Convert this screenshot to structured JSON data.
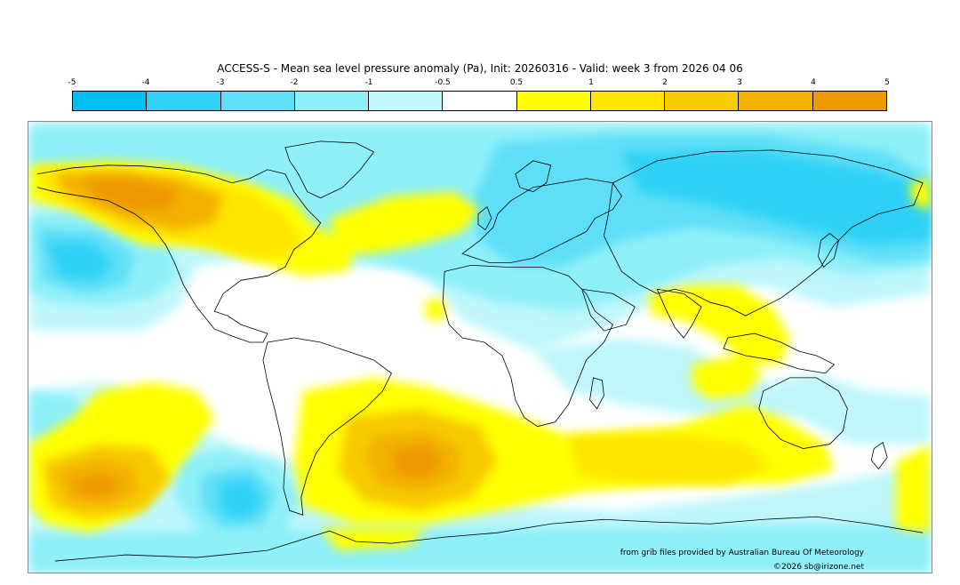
{
  "title": "ACCESS-S - Mean sea level pressure anomaly (Pa), Init: 20260316 - Valid: week 3 from 2026 04 06",
  "colorbar": {
    "ticks": [
      "-5",
      "-4",
      "-3",
      "-2",
      "-1",
      "-0.5",
      "0.5",
      "1",
      "2",
      "3",
      "4",
      "5"
    ],
    "colors": [
      "#00bff2",
      "#2fd1f5",
      "#5fdff7",
      "#8ff0f9",
      "#bff7fb",
      "#ffffff",
      "#ffff00",
      "#ffe600",
      "#f8cb00",
      "#f3b200",
      "#ef9900"
    ]
  },
  "credit": "from grib files provided by Australian Bureau Of Meteorology",
  "copyright": "©2026 sb@irizone.net"
}
